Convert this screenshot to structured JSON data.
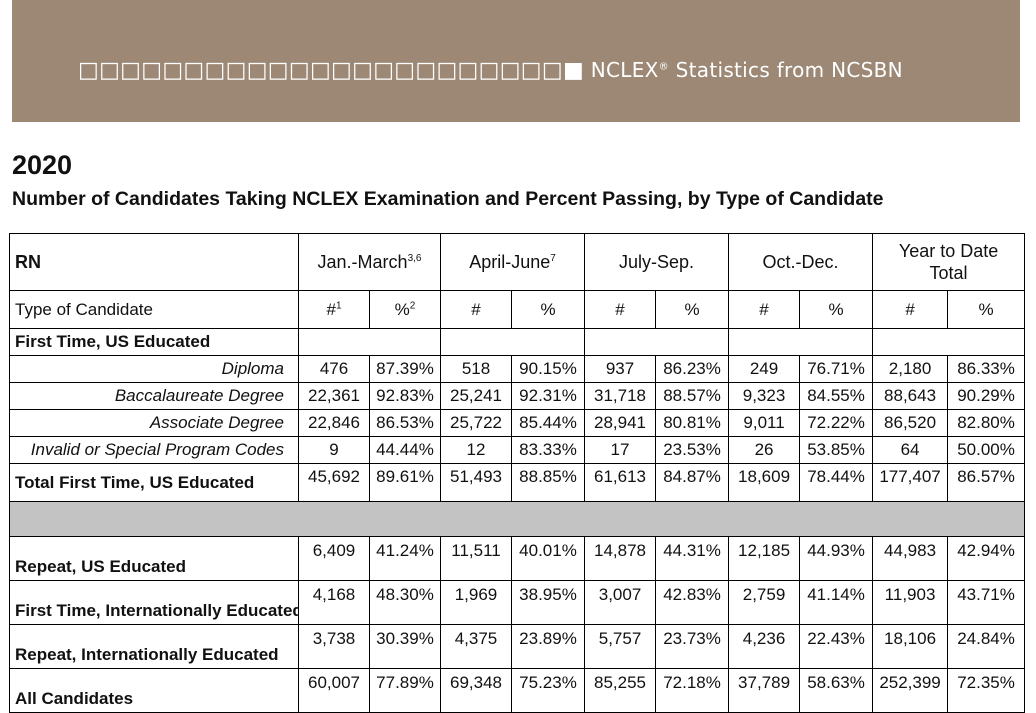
{
  "banner": {
    "squares": "□□□□□□□□□□□□□□□□□□□□□□□",
    "filled_square": "■",
    "text_prefix": "NCLEX",
    "reg": "®",
    "text_suffix": " Statistics from NCSBN"
  },
  "year": "2020",
  "subtitle": "Number of Candidates Taking NCLEX Examination and Percent Passing, by Type of Candidate",
  "table": {
    "rn_label": "RN",
    "periods": [
      {
        "label": "Jan.-March",
        "sup": "3,6"
      },
      {
        "label": "April-June",
        "sup": "7"
      },
      {
        "label": "July-Sep.",
        "sup": ""
      },
      {
        "label": "Oct.-Dec.",
        "sup": ""
      },
      {
        "label": "Year to Date Total",
        "sup": ""
      }
    ],
    "type_label": "Type of Candidate",
    "col_heads": [
      {
        "t": "#",
        "sup": "1"
      },
      {
        "t": "%",
        "sup": "2"
      },
      {
        "t": "#",
        "sup": ""
      },
      {
        "t": "%",
        "sup": ""
      },
      {
        "t": "#",
        "sup": ""
      },
      {
        "t": "%",
        "sup": ""
      },
      {
        "t": "#",
        "sup": ""
      },
      {
        "t": "%",
        "sup": ""
      },
      {
        "t": "#",
        "sup": ""
      },
      {
        "t": "%",
        "sup": ""
      }
    ],
    "group_first_us": "First Time, US Educated",
    "sub_rows": [
      {
        "label": "Diploma",
        "values": [
          "476",
          "87.39%",
          "518",
          "90.15%",
          "937",
          "86.23%",
          "249",
          "76.71%",
          "2,180",
          "86.33%"
        ]
      },
      {
        "label": "Baccalaureate Degree",
        "values": [
          "22,361",
          "92.83%",
          "25,241",
          "92.31%",
          "31,718",
          "88.57%",
          "9,323",
          "84.55%",
          "88,643",
          "90.29%"
        ]
      },
      {
        "label": "Associate Degree",
        "values": [
          "22,846",
          "86.53%",
          "25,722",
          "85.44%",
          "28,941",
          "80.81%",
          "9,011",
          "72.22%",
          "86,520",
          "82.80%"
        ]
      },
      {
        "label": "Invalid or Special Program Codes",
        "values": [
          "9",
          "44.44%",
          "12",
          "83.33%",
          "17",
          "23.53%",
          "26",
          "53.85%",
          "64",
          "50.00%"
        ]
      }
    ],
    "total_first_us": {
      "label": "Total First Time, US Educated",
      "values": [
        "45,692",
        "89.61%",
        "51,493",
        "88.85%",
        "61,613",
        "84.87%",
        "18,609",
        "78.44%",
        "177,407",
        "86.57%"
      ]
    },
    "bottom_rows": [
      {
        "label": "Repeat, US Educated",
        "values": [
          "6,409",
          "41.24%",
          "11,511",
          "40.01%",
          "14,878",
          "44.31%",
          "12,185",
          "44.93%",
          "44,983",
          "42.94%"
        ]
      },
      {
        "label": "First Time, Internationally Educated",
        "values": [
          "4,168",
          "48.30%",
          "1,969",
          "38.95%",
          "3,007",
          "42.83%",
          "2,759",
          "41.14%",
          "11,903",
          "43.71%"
        ]
      },
      {
        "label": "Repeat, Internationally Educated",
        "values": [
          "3,738",
          "30.39%",
          "4,375",
          "23.89%",
          "5,757",
          "23.73%",
          "4,236",
          "22.43%",
          "18,106",
          "24.84%"
        ]
      },
      {
        "label": "All Candidates",
        "values": [
          "60,007",
          "77.89%",
          "69,348",
          "75.23%",
          "85,255",
          "72.18%",
          "37,789",
          "58.63%",
          "252,399",
          "72.35%"
        ]
      }
    ]
  }
}
